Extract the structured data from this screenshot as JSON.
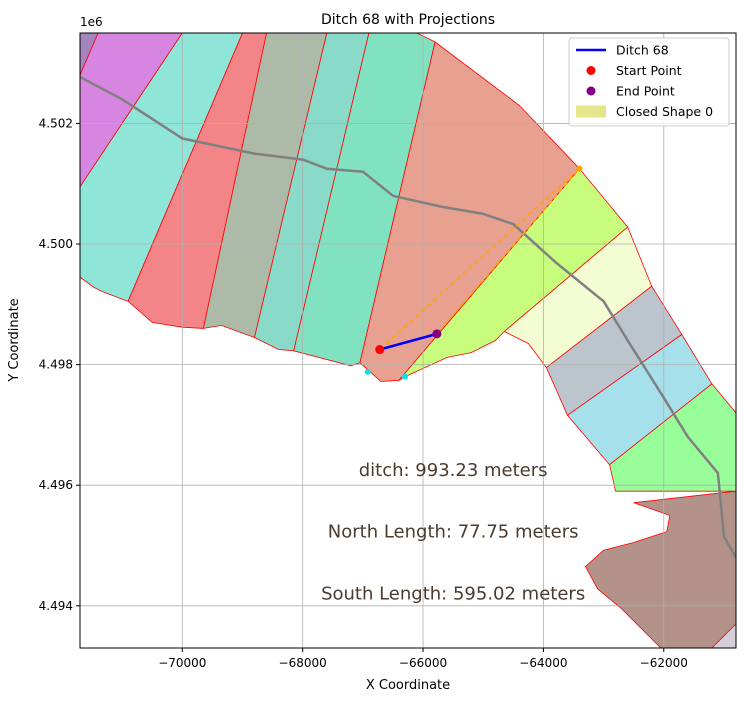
{
  "chart_data": {
    "type": "area",
    "title": "Ditch 68 with Projections",
    "xlabel": "X Coordinate",
    "ylabel": "Y Coordinate",
    "y_offset_label": "1e6",
    "xlim": [
      -71700,
      -60800
    ],
    "ylim": [
      4493300,
      4503500
    ],
    "xticks": [
      -70000,
      -68000,
      -66000,
      -64000,
      -62000
    ],
    "xtick_labels": [
      "−70000",
      "−68000",
      "−66000",
      "−64000",
      "−62000"
    ],
    "yticks": [
      4494000,
      4496000,
      4498000,
      4500000,
      4502000
    ],
    "ytick_labels": [
      "4.494",
      "4.496",
      "4.498",
      "4.500",
      "4.502"
    ],
    "grid": true,
    "legend": {
      "position": "top-right",
      "entries": [
        {
          "label": "Ditch 68",
          "kind": "line",
          "color": "#0000ff"
        },
        {
          "label": "Start Point",
          "kind": "point",
          "color": "#ff0000"
        },
        {
          "label": "End Point",
          "kind": "point",
          "color": "#800080"
        },
        {
          "label": "Closed Shape 0",
          "kind": "patch",
          "color": "#e5e58a"
        }
      ]
    },
    "ditch": {
      "start": [
        -66720,
        4498250
      ],
      "end": [
        -65770,
        4498510
      ],
      "color": "#0000ff"
    },
    "start_point": [
      -66720,
      4498250
    ],
    "end_point": [
      -65770,
      4498510
    ],
    "projection_points": [
      {
        "xy": [
          -63400,
          4501250
        ],
        "color": "#ffa500"
      },
      {
        "xy": [
          -66920,
          4497880
        ],
        "color": "#00e5ee"
      },
      {
        "xy": [
          -66300,
          4497800
        ],
        "color": "#00e5ee"
      }
    ],
    "projection_line": {
      "points": [
        [
          -66720,
          4498250
        ],
        [
          -63400,
          4501250
        ],
        [
          -65770,
          4498510
        ]
      ],
      "color": "#ffa500"
    },
    "river": {
      "color": "#808080",
      "points": [
        [
          -71700,
          4502770
        ],
        [
          -71000,
          4502400
        ],
        [
          -70000,
          4501750
        ],
        [
          -68800,
          4501500
        ],
        [
          -68000,
          4501400
        ],
        [
          -67600,
          4501250
        ],
        [
          -67000,
          4501200
        ],
        [
          -66500,
          4500800
        ],
        [
          -65700,
          4500620
        ],
        [
          -65000,
          4500500
        ],
        [
          -64500,
          4500330
        ],
        [
          -63800,
          4499700
        ],
        [
          -63000,
          4499050
        ],
        [
          -62600,
          4498400
        ],
        [
          -62000,
          4497450
        ],
        [
          -61600,
          4496800
        ],
        [
          -61100,
          4496200
        ],
        [
          -61000,
          4495150
        ],
        [
          -60800,
          4494800
        ]
      ]
    },
    "regions": [
      {
        "color": "#a585c0",
        "points": [
          [
            -71700,
            4503500
          ],
          [
            -71400,
            4503500
          ],
          [
            -71700,
            4502800
          ]
        ]
      },
      {
        "color": "#d685e0",
        "points": [
          [
            -71400,
            4503500
          ],
          [
            -70000,
            4503500
          ],
          [
            -71700,
            4500950
          ],
          [
            -71700,
            4502800
          ]
        ]
      },
      {
        "color": "#8ee5d8",
        "points": [
          [
            -70000,
            4503500
          ],
          [
            -69000,
            4503500
          ],
          [
            -70900,
            4499050
          ],
          [
            -71300,
            4499200
          ],
          [
            -71450,
            4499270
          ],
          [
            -71700,
            4499450
          ],
          [
            -71700,
            4500950
          ]
        ]
      },
      {
        "color": "#f38487",
        "points": [
          [
            -69000,
            4503500
          ],
          [
            -68600,
            4503500
          ],
          [
            -69650,
            4498600
          ],
          [
            -70000,
            4498620
          ],
          [
            -70500,
            4498700
          ],
          [
            -70900,
            4499050
          ]
        ]
      },
      {
        "color": "#aebaa8",
        "points": [
          [
            -68600,
            4503500
          ],
          [
            -67600,
            4503500
          ],
          [
            -68800,
            4498450
          ],
          [
            -69350,
            4498650
          ],
          [
            -69650,
            4498600
          ]
        ]
      },
      {
        "color": "#89dac8",
        "points": [
          [
            -67600,
            4503500
          ],
          [
            -66900,
            4503500
          ],
          [
            -68150,
            4498230
          ],
          [
            -68400,
            4498250
          ],
          [
            -68800,
            4498450
          ]
        ]
      },
      {
        "color": "#80e2c0",
        "points": [
          [
            -66900,
            4503500
          ],
          [
            -66100,
            4503500
          ],
          [
            -65800,
            4503350
          ],
          [
            -67050,
            4498030
          ],
          [
            -67200,
            4497980
          ],
          [
            -68150,
            4498230
          ]
        ]
      },
      {
        "color": "#e8a090",
        "points": [
          [
            -65800,
            4503350
          ],
          [
            -64400,
            4502300
          ],
          [
            -63400,
            4501250
          ],
          [
            -66400,
            4497740
          ],
          [
            -66700,
            4497720
          ],
          [
            -66900,
            4497900
          ],
          [
            -67050,
            4498030
          ]
        ]
      },
      {
        "color": "#c7fc7c",
        "points": [
          [
            -63400,
            4501250
          ],
          [
            -62700,
            4500400
          ],
          [
            -62600,
            4500280
          ],
          [
            -64650,
            4498550
          ],
          [
            -64800,
            4498400
          ],
          [
            -65200,
            4498200
          ],
          [
            -65600,
            4498120
          ],
          [
            -66300,
            4497800
          ],
          [
            -66400,
            4497740
          ]
        ]
      },
      {
        "color": "#f3fcd2",
        "points": [
          [
            -62600,
            4500280
          ],
          [
            -62200,
            4499300
          ],
          [
            -63950,
            4497950
          ],
          [
            -64250,
            4498350
          ],
          [
            -64650,
            4498550
          ]
        ]
      },
      {
        "color": "#bcc4cd",
        "points": [
          [
            -62200,
            4499300
          ],
          [
            -61700,
            4498500
          ],
          [
            -63600,
            4497160
          ],
          [
            -63950,
            4497950
          ]
        ]
      },
      {
        "color": "#a6e0ea",
        "points": [
          [
            -61700,
            4498500
          ],
          [
            -61200,
            4497680
          ],
          [
            -62900,
            4496340
          ],
          [
            -63600,
            4497160
          ]
        ]
      },
      {
        "color": "#97fe9a",
        "points": [
          [
            -61200,
            4497680
          ],
          [
            -60800,
            4497200
          ],
          [
            -60800,
            4495900
          ],
          [
            -62800,
            4495900
          ],
          [
            -62900,
            4496340
          ]
        ]
      },
      {
        "color": "#b3928a",
        "points": [
          [
            -60800,
            4495900
          ],
          [
            -60800,
            4493300
          ],
          [
            -62050,
            4493300
          ],
          [
            -62700,
            4493950
          ],
          [
            -63100,
            4494280
          ],
          [
            -63300,
            4494650
          ],
          [
            -63000,
            4494920
          ],
          [
            -62500,
            4495050
          ],
          [
            -61950,
            4495230
          ],
          [
            -61900,
            4495500
          ],
          [
            -62500,
            4495710
          ]
        ]
      },
      {
        "color": "#d3d0db",
        "points": [
          [
            -60800,
            4493300
          ],
          [
            -61200,
            4493300
          ],
          [
            -60800,
            4493700
          ]
        ]
      }
    ],
    "annotations": [
      {
        "text": "ditch: 993.23 meters",
        "xy": [
          -65500,
          4496250
        ]
      },
      {
        "text": "North Length: 77.75 meters",
        "xy": [
          -65500,
          4495230
        ]
      },
      {
        "text": "South Length: 595.02 meters",
        "xy": [
          -65500,
          4494200
        ]
      }
    ]
  }
}
